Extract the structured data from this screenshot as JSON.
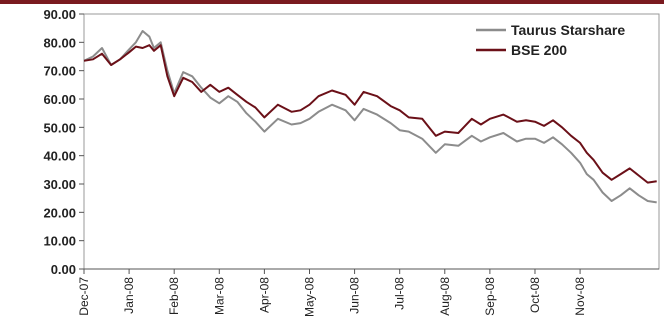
{
  "chart_data": {
    "type": "line",
    "title": "",
    "xlabel": "",
    "ylabel": "",
    "ylim": [
      0,
      90
    ],
    "y_ticks": [
      "0.00",
      "10.00",
      "20.00",
      "30.00",
      "40.00",
      "50.00",
      "60.00",
      "70.00",
      "80.00",
      "90.00"
    ],
    "x_ticks": [
      "Dec-07",
      "Jan-08",
      "Feb-08",
      "Mar-08",
      "Apr-08",
      "May-08",
      "Jun-08",
      "Jul-08",
      "Aug-08",
      "Sep-08",
      "Oct-08",
      "Nov-08"
    ],
    "grid": false,
    "legend_position": "top-right",
    "x": [
      "Dec-07",
      "Dec-07",
      "Dec-07",
      "Dec-07",
      "Dec-07",
      "Jan-08",
      "Jan-08",
      "Jan-08",
      "Jan-08",
      "Jan-08",
      "Jan-08",
      "Feb-08",
      "Feb-08",
      "Feb-08",
      "Feb-08",
      "Feb-08",
      "Mar-08",
      "Mar-08",
      "Mar-08",
      "Mar-08",
      "Mar-08",
      "Apr-08",
      "Apr-08",
      "Apr-08",
      "Apr-08",
      "Apr-08",
      "May-08",
      "May-08",
      "May-08",
      "May-08",
      "May-08",
      "Jun-08",
      "Jun-08",
      "Jun-08",
      "Jun-08",
      "Jun-08",
      "Jul-08",
      "Jul-08",
      "Jul-08",
      "Jul-08",
      "Jul-08",
      "Aug-08",
      "Aug-08",
      "Aug-08",
      "Aug-08",
      "Aug-08",
      "Sep-08",
      "Sep-08",
      "Sep-08",
      "Sep-08",
      "Sep-08",
      "Oct-08",
      "Oct-08",
      "Oct-08",
      "Oct-08",
      "Oct-08",
      "Nov-08",
      "Nov-08",
      "Nov-08",
      "Nov-08",
      "Nov-08"
    ],
    "x_pos": [
      0,
      0.2,
      0.4,
      0.6,
      0.8,
      1.0,
      1.15,
      1.3,
      1.45,
      1.55,
      1.7,
      1.85,
      2.0,
      2.2,
      2.4,
      2.6,
      2.8,
      3.0,
      3.2,
      3.4,
      3.6,
      3.8,
      4.0,
      4.3,
      4.6,
      4.8,
      5.0,
      5.2,
      5.5,
      5.8,
      6.0,
      6.2,
      6.5,
      6.8,
      7.0,
      7.2,
      7.5,
      7.8,
      8.0,
      8.3,
      8.6,
      8.8,
      9.0,
      9.3,
      9.6,
      9.8,
      10.0,
      10.2,
      10.4,
      10.6,
      10.8,
      11.0,
      11.15,
      11.3,
      11.5,
      11.7,
      11.9,
      12.1,
      12.3,
      12.5,
      12.7
    ],
    "series": [
      {
        "name": "Taurus Starshare",
        "color": "#8c8c8c",
        "values": [
          73.5,
          75,
          78,
          72,
          74,
          77.5,
          80,
          84,
          82,
          78,
          80,
          70,
          62,
          69.5,
          68,
          64,
          60.5,
          58.5,
          61,
          59,
          55,
          52,
          48.5,
          53,
          51,
          51.5,
          53,
          55.5,
          58,
          56,
          52.5,
          56.5,
          54.5,
          51.5,
          49,
          48.5,
          46,
          41,
          44,
          43.5,
          47,
          45,
          46.5,
          48,
          45,
          46,
          46,
          44.5,
          46.5,
          44,
          41,
          37.5,
          33.5,
          31.5,
          27,
          24,
          26,
          28.5,
          26,
          24,
          23.5
        ]
      },
      {
        "name": "BSE 200",
        "color": "#6b1018",
        "values": [
          73.5,
          74,
          76,
          72,
          74,
          76.5,
          78.5,
          78,
          79,
          77,
          79,
          68,
          61,
          67.5,
          66,
          62.5,
          65,
          62.5,
          64,
          61.5,
          59,
          57,
          53.5,
          58,
          55.5,
          56,
          58,
          61,
          63,
          61.5,
          58,
          62.5,
          61,
          57.5,
          56,
          53.5,
          53,
          47,
          48.5,
          48,
          53,
          51,
          53,
          54.5,
          52,
          52.5,
          52,
          50.5,
          52.5,
          50,
          47,
          44.5,
          41,
          38.5,
          34,
          31.5,
          33.5,
          35.5,
          33,
          30.5,
          31
        ]
      }
    ]
  }
}
